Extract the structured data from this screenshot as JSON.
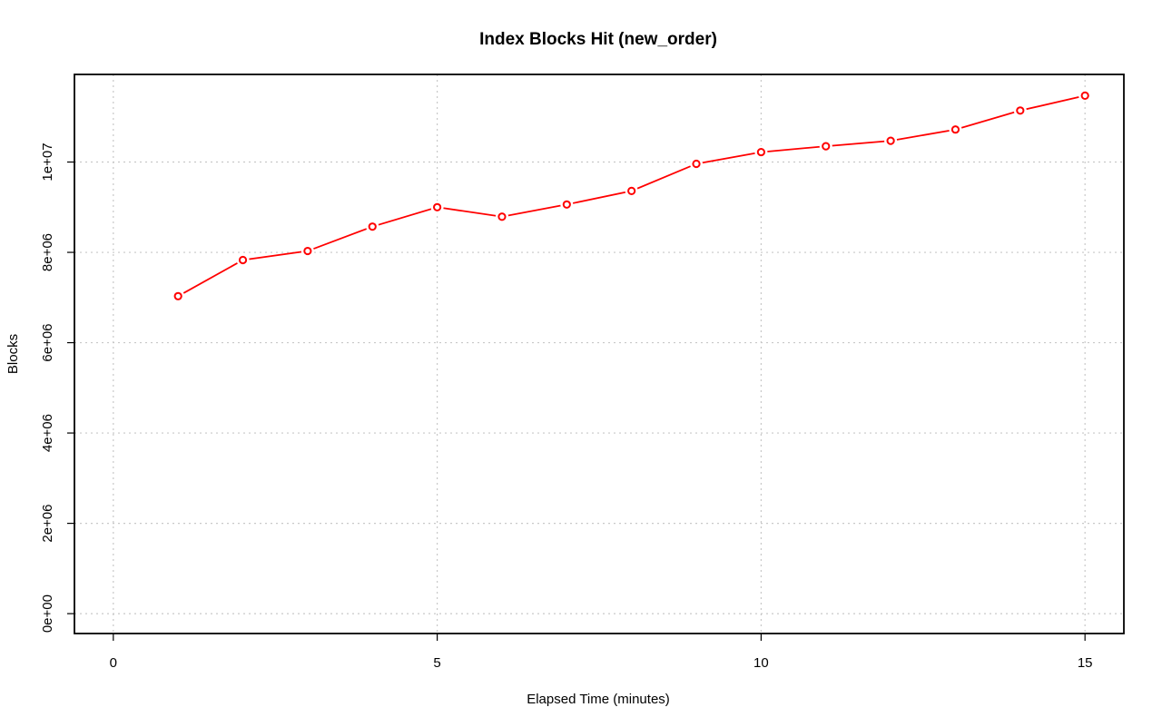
{
  "chart_data": {
    "type": "line",
    "title": "Index Blocks Hit (new_order)",
    "xlabel": "Elapsed Time (minutes)",
    "ylabel": "Blocks",
    "xlim": [
      -0.6,
      15.6
    ],
    "ylim": [
      -440000,
      11940000
    ],
    "x_ticks": [
      0,
      5,
      10,
      15
    ],
    "x_tick_labels": [
      "0",
      "5",
      "10",
      "15"
    ],
    "y_ticks": [
      0,
      2000000,
      4000000,
      6000000,
      8000000,
      10000000
    ],
    "y_tick_labels": [
      "0e+00",
      "2e+06",
      "4e+06",
      "6e+06",
      "8e+06",
      "1e+07"
    ],
    "grid": true,
    "series": [
      {
        "color": "#ff0000",
        "marker": "open-circle",
        "x": [
          1,
          2,
          3,
          4,
          5,
          6,
          7,
          8,
          9,
          10,
          11,
          12,
          13,
          14,
          15
        ],
        "y": [
          7030000,
          7830000,
          8030000,
          8570000,
          9000000,
          8790000,
          9060000,
          9360000,
          9960000,
          10220000,
          10350000,
          10470000,
          10720000,
          11140000,
          11470000
        ]
      }
    ]
  }
}
